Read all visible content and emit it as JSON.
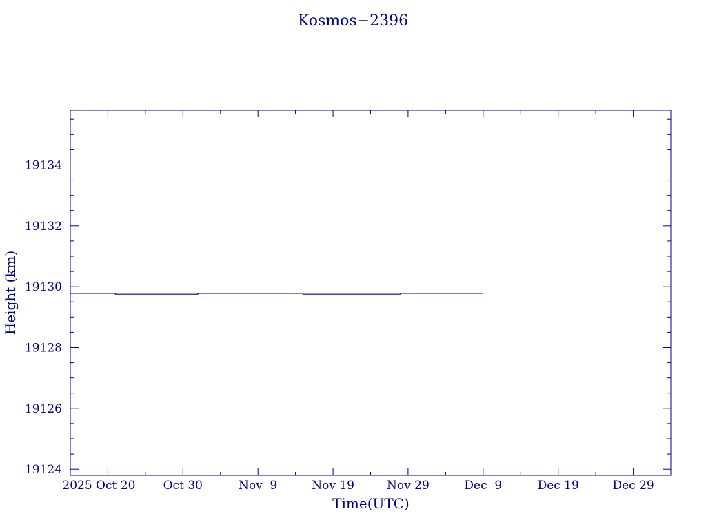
{
  "chart_data": {
    "type": "line",
    "title": "Kosmos−2396",
    "xlabel": "Time(UTC)",
    "ylabel": "Height (km)",
    "x_ticks": [
      {
        "date": "2025-10-20",
        "label": "2025 Oct 20"
      },
      {
        "date": "2025-10-30",
        "label": "Oct 30"
      },
      {
        "date": "2025-11-09",
        "label": "Nov  9"
      },
      {
        "date": "2025-11-19",
        "label": "Nov 19"
      },
      {
        "date": "2025-11-29",
        "label": "Nov 29"
      },
      {
        "date": "2025-12-09",
        "label": "Dec  9"
      },
      {
        "date": "2025-12-19",
        "label": "Dec 19"
      },
      {
        "date": "2025-12-29",
        "label": "Dec 29"
      }
    ],
    "xlim": [
      "2025-10-15",
      "2026-01-03"
    ],
    "ylim": [
      19123.8,
      19135.8
    ],
    "y_ticks": [
      19124,
      19126,
      19128,
      19130,
      19132,
      19134
    ],
    "series": [
      {
        "color": "#00008b",
        "x": [
          "2025-10-15",
          "2025-10-21",
          "2025-10-21",
          "2025-11-01",
          "2025-11-01",
          "2025-11-15",
          "2025-11-15",
          "2025-11-28",
          "2025-11-28",
          "2025-12-09"
        ],
        "y": [
          19129.78,
          19129.78,
          19129.75,
          19129.75,
          19129.78,
          19129.78,
          19129.75,
          19129.75,
          19129.78,
          19129.78
        ]
      }
    ],
    "grid": false
  }
}
